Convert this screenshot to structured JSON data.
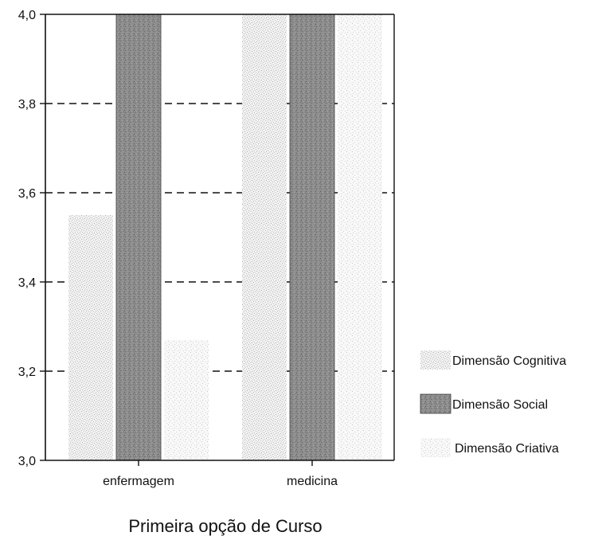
{
  "chart_data": {
    "type": "bar",
    "title": "",
    "xlabel": "Primeira opção de Curso",
    "ylabel": "",
    "categories": [
      "enfermagem",
      "medicina"
    ],
    "series": [
      {
        "name": "Dimensão Cognitiva",
        "values": [
          3.55,
          4.0
        ],
        "pattern": "light-stipple"
      },
      {
        "name": "Dimensão Social",
        "values": [
          4.0,
          4.0
        ],
        "pattern": "dark-stipple"
      },
      {
        "name": "Dimensão Criativa",
        "values": [
          3.27,
          4.0
        ],
        "pattern": "faint-stipple"
      }
    ],
    "ylim": [
      3.0,
      4.0
    ],
    "yticks": [
      "3,0",
      "3,2",
      "3,4",
      "3,6",
      "3,8",
      "4,0"
    ],
    "ytick_values": [
      3.0,
      3.2,
      3.4,
      3.6,
      3.8,
      4.0
    ],
    "grid": "dashed horizontal",
    "legend": "right"
  }
}
